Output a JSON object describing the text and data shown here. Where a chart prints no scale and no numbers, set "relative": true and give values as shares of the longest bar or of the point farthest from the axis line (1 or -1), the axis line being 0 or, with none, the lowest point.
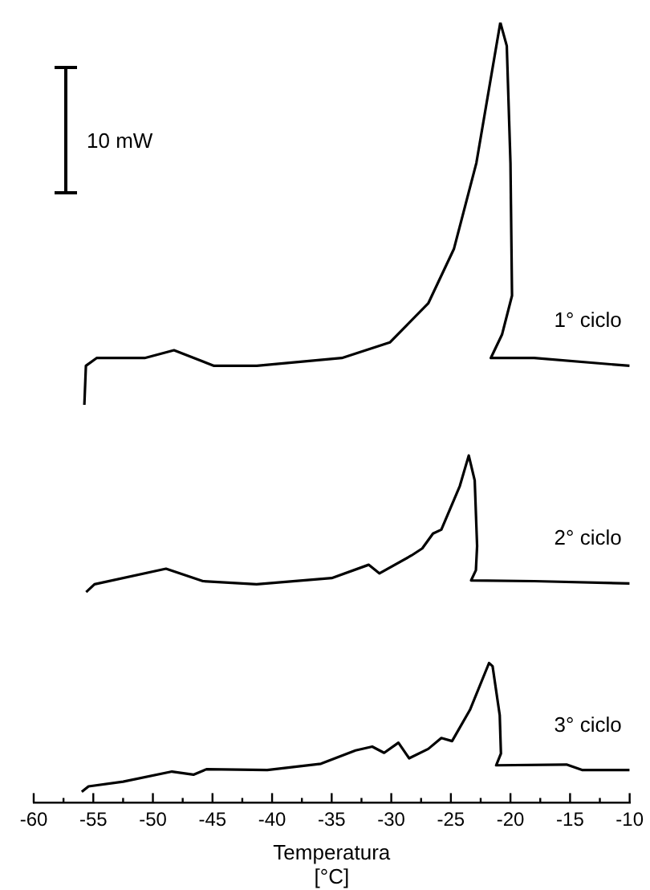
{
  "chart_data": {
    "type": "line",
    "xlabel": "Temperatura\n[°C]",
    "relative": true,
    "xlim": [
      -60,
      -10
    ],
    "xticks": [
      -60,
      {
        "value": -57.5,
        "label": null
      },
      -55,
      {
        "value": -52.5,
        "label": null
      },
      -50,
      {
        "value": -47.5,
        "label": null
      },
      -45,
      {
        "value": -42.5,
        "label": null
      },
      -40,
      {
        "value": -37.5,
        "label": null
      },
      -35,
      {
        "value": -32.5,
        "label": null
      },
      -30,
      {
        "value": -27.5,
        "label": null
      },
      -25,
      {
        "value": -22.5,
        "label": null
      },
      -20,
      {
        "value": -17.5,
        "label": null
      },
      -15,
      {
        "value": -12.5,
        "label": null
      },
      -10
    ],
    "legend": false,
    "grid": false,
    "marker": "none",
    "line_style": "solid",
    "annotations": [
      "10 mW"
    ],
    "series": [
      {
        "name": "1° ciclo",
        "color": "#000000",
        "x": [
          -55.75,
          -55.62,
          -54.72,
          -50.69,
          -48.23,
          -44.87,
          -41.28,
          -34.15,
          -30.12,
          -26.9,
          -24.74,
          -22.86,
          -21.52,
          -20.85,
          -20.31,
          -20.0,
          -19.87,
          -20.71,
          -21.65,
          -18.02,
          -10.0
        ],
        "values": [
          0.51,
          0.56,
          0.57,
          0.57,
          0.58,
          0.56,
          0.56,
          0.57,
          0.59,
          0.64,
          0.71,
          0.82,
          0.94,
          1.0,
          0.97,
          0.82,
          0.65,
          0.6,
          0.57,
          0.57,
          0.56
        ]
      },
      {
        "name": "2° ciclo",
        "color": "#000000",
        "x": [
          -55.6,
          -54.9,
          -48.9,
          -45.8,
          -41.3,
          -35.0,
          -31.9,
          -31.0,
          -28.3,
          -27.4,
          -26.5,
          -25.8,
          -24.25,
          -23.5,
          -23.0,
          -22.8,
          -22.9,
          -23.3,
          -18.0,
          -10.0
        ],
        "values": [
          0.27,
          0.28,
          0.3,
          0.284,
          0.28,
          0.288,
          0.305,
          0.294,
          0.317,
          0.326,
          0.345,
          0.35,
          0.406,
          0.445,
          0.413,
          0.329,
          0.298,
          0.285,
          0.284,
          0.281
        ]
      },
      {
        "name": "3° ciclo",
        "color": "#000000",
        "x": [
          -55.97,
          -55.4,
          -52.5,
          -48.4,
          -46.6,
          -45.5,
          -40.4,
          -35.9,
          -33.0,
          -31.6,
          -30.6,
          -29.4,
          -28.5,
          -26.9,
          -25.8,
          -24.9,
          -23.4,
          -21.8,
          -21.5,
          -20.9,
          -20.8,
          -21.2,
          -15.3,
          -14.0,
          -10.0
        ],
        "values": [
          0.014,
          0.021,
          0.027,
          0.04,
          0.036,
          0.043,
          0.042,
          0.05,
          0.067,
          0.072,
          0.064,
          0.077,
          0.057,
          0.069,
          0.083,
          0.079,
          0.119,
          0.179,
          0.175,
          0.112,
          0.063,
          0.048,
          0.049,
          0.042,
          0.042
        ]
      }
    ]
  }
}
